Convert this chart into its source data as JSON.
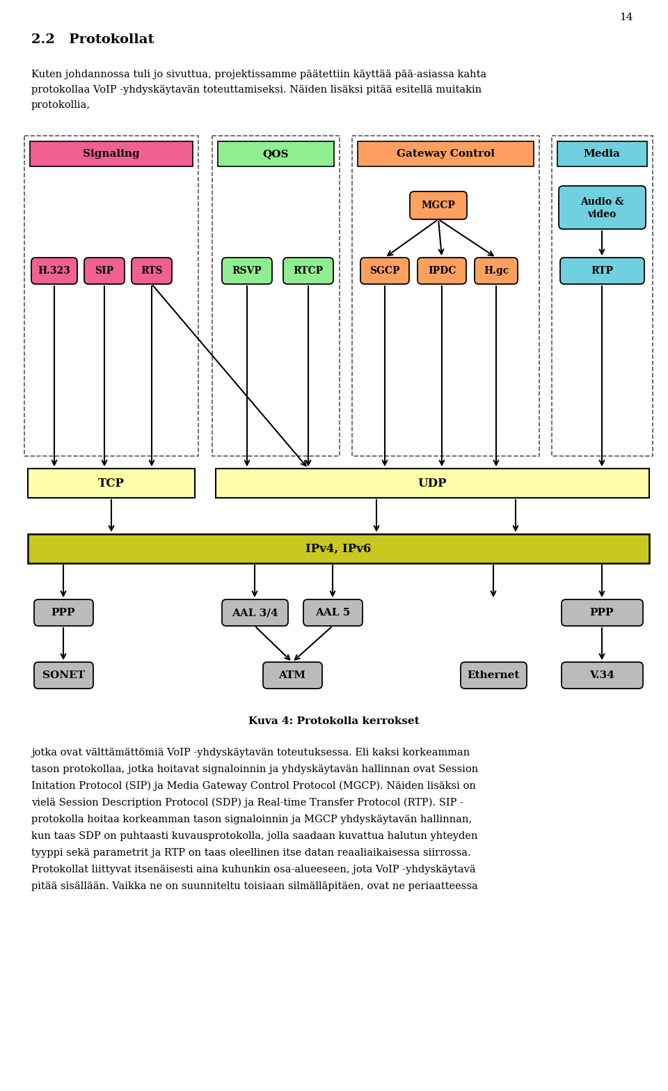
{
  "page_number": "14",
  "colors": {
    "signaling_header": "#F06090",
    "signaling_boxes": "#F06090",
    "qos_header": "#90EE90",
    "qos_boxes": "#90EE90",
    "gateway_header": "#FFA060",
    "gateway_boxes": "#FFA060",
    "media_header": "#70D0E0",
    "media_boxes": "#70D0E0",
    "tcp_udp": "#FFFFAA",
    "ipv4": "#C8C820",
    "lower_boxes": "#BBBBBB",
    "background": "#FFFFFF",
    "dashed_border": "#444444",
    "arrow": "#000000"
  },
  "intro_lines": [
    "Kuten johdannossa tuli jo sivuttua, projektissamme päätettiin käyttää pää-asiassa kahta",
    "protokollaa VoIP -yhdyskäytavän toteuttamiseksi. Näiden lisäksi pitää esitellä muitakin",
    "protokollia,"
  ],
  "body_lines": [
    "jotka ovat välttämättömiä VoIP -yhdyskäytavän toteutuksessa. Eli kaksi korkeamman",
    "tason protokollaa, jotka hoitavat signaloinnin ja yhdyskäytavän hallinnan ovat Session",
    "Initation Protocol (SIP) ja Media Gateway Control Protocol (MGCP). Näiden lisäksi on",
    "vielä Session Description Protocol (SDP) ja Real-time Transfer Protocol (RTP). SIP -",
    "protokolla hoitaa korkeamman tason signaloinnin ja MGCP yhdyskäytavän hallinnan,",
    "kun taas SDP on puhtaasti kuvausprotokolla, jolla saadaan kuvattua halutun yhteyden",
    "tyyppi sekä parametrit ja RTP on taas oleellinen itse datan reaaliaikaisessa siirrossa.",
    "Protokollat liittyvat itsenäisesti aina kuhunkin osa-alueeseen, jota VoIP -yhdyskäytavä",
    "pitää sisällään. Vaikka ne on suunniteltu toisiaan silmälläpitäen, ovat ne periaatteessa"
  ],
  "caption": "Kuva 4: Protokolla kerrokset"
}
